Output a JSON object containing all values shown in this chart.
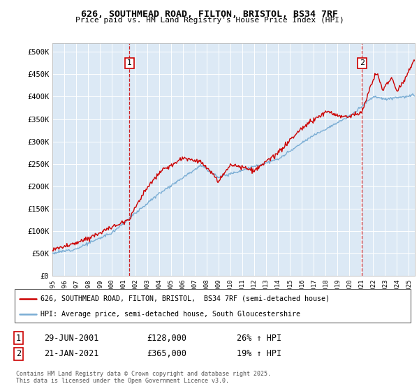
{
  "title_line1": "626, SOUTHMEAD ROAD, FILTON, BRISTOL, BS34 7RF",
  "title_line2": "Price paid vs. HM Land Registry's House Price Index (HPI)",
  "background_color": "#dce9f5",
  "ylim": [
    0,
    520000
  ],
  "yticks": [
    0,
    50000,
    100000,
    150000,
    200000,
    250000,
    300000,
    350000,
    400000,
    450000,
    500000
  ],
  "ytick_labels": [
    "£0",
    "£50K",
    "£100K",
    "£150K",
    "£200K",
    "£250K",
    "£300K",
    "£350K",
    "£400K",
    "£450K",
    "£500K"
  ],
  "line1_color": "#cc0000",
  "line2_color": "#7aadd4",
  "marker1_date": 2001.49,
  "marker2_date": 2021.05,
  "vline_color": "#cc0000",
  "legend_line1": "626, SOUTHMEAD ROAD, FILTON, BRISTOL,  BS34 7RF (semi-detached house)",
  "legend_line2": "HPI: Average price, semi-detached house, South Gloucestershire",
  "table_row1": [
    "1",
    "29-JUN-2001",
    "£128,000",
    "26% ↑ HPI"
  ],
  "table_row2": [
    "2",
    "21-JAN-2021",
    "£365,000",
    "19% ↑ HPI"
  ],
  "footnote": "Contains HM Land Registry data © Crown copyright and database right 2025.\nThis data is licensed under the Open Government Licence v3.0.",
  "xmin": 1995,
  "xmax": 2025.5
}
